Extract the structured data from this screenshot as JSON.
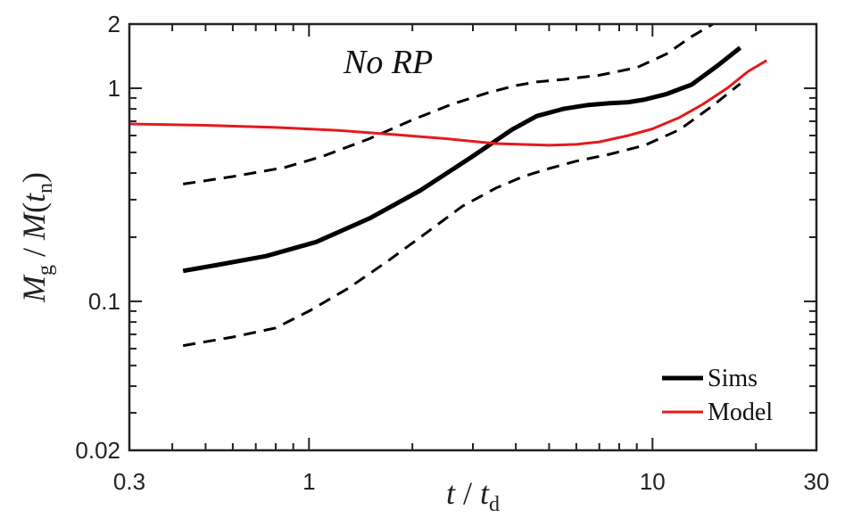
{
  "chart_data": {
    "type": "line",
    "x_scale": "log",
    "y_scale": "log",
    "xlim": [
      0.3,
      30
    ],
    "ylim": [
      0.02,
      2
    ],
    "x_ticks": [
      {
        "value": 0.3,
        "label": "0.3"
      },
      {
        "value": 1,
        "label": "1"
      },
      {
        "value": 10,
        "label": "10"
      },
      {
        "value": 30,
        "label": "30"
      }
    ],
    "y_ticks": [
      {
        "value": 0.02,
        "label": "0.02"
      },
      {
        "value": 0.1,
        "label": "0.1"
      },
      {
        "value": 1,
        "label": "1"
      },
      {
        "value": 2,
        "label": "2"
      }
    ],
    "xlabel": {
      "t1": "t",
      "sep": " / ",
      "t2": "t",
      "sub": "d"
    },
    "ylabel": {
      "M": "M",
      "sub_g": "g",
      "sep": " / ",
      "M2": "M",
      "lp": "(",
      "t": "t",
      "sub_n": "n",
      "rp": ")"
    },
    "annotation": "No RP",
    "legend_position": "bottom-right",
    "series": [
      {
        "name": "Sims",
        "color": "#000000",
        "style": "solid",
        "width": 5,
        "x": [
          0.43,
          0.55,
          0.75,
          1.05,
          1.5,
          2.1,
          3.0,
          3.9,
          4.6,
          5.5,
          6.5,
          7.5,
          8.5,
          9.5,
          11.0,
          13.0,
          15.5,
          18.0
        ],
        "y": [
          0.139,
          0.149,
          0.163,
          0.19,
          0.245,
          0.33,
          0.48,
          0.64,
          0.74,
          0.8,
          0.835,
          0.85,
          0.86,
          0.885,
          0.94,
          1.04,
          1.28,
          1.55
        ]
      },
      {
        "name": "Model",
        "color": "#e41a1c",
        "style": "solid",
        "width": 3,
        "x": [
          0.3,
          0.5,
          0.8,
          1.2,
          1.8,
          2.5,
          3.5,
          5.0,
          6.0,
          7.0,
          8.5,
          10.0,
          12.0,
          14.0,
          16.5,
          19.0,
          21.5
        ],
        "y": [
          0.68,
          0.67,
          0.655,
          0.635,
          0.605,
          0.58,
          0.55,
          0.54,
          0.545,
          0.56,
          0.6,
          0.645,
          0.73,
          0.84,
          1.0,
          1.2,
          1.35
        ]
      },
      {
        "name": "Upper envelope",
        "legend": false,
        "color": "#000000",
        "style": "dashed",
        "width": 3,
        "x": [
          0.43,
          0.6,
          0.85,
          1.1,
          1.5,
          2.0,
          2.6,
          3.3,
          4.0,
          4.6,
          5.5,
          7.0,
          9.0,
          11.0,
          13.0,
          15.0
        ],
        "y": [
          0.355,
          0.385,
          0.425,
          0.48,
          0.58,
          0.71,
          0.84,
          0.95,
          1.03,
          1.07,
          1.1,
          1.15,
          1.25,
          1.45,
          1.75,
          2.0
        ]
      },
      {
        "name": "Lower envelope",
        "legend": false,
        "color": "#000000",
        "style": "dashed",
        "width": 3,
        "x": [
          0.43,
          0.6,
          0.8,
          1.0,
          1.3,
          1.7,
          2.2,
          2.8,
          3.5,
          4.2,
          5.0,
          6.0,
          7.5,
          9.5,
          12.0,
          15.0,
          18.0
        ],
        "y": [
          0.062,
          0.068,
          0.075,
          0.09,
          0.115,
          0.155,
          0.21,
          0.28,
          0.34,
          0.385,
          0.42,
          0.455,
          0.49,
          0.54,
          0.64,
          0.83,
          1.05
        ]
      }
    ]
  }
}
